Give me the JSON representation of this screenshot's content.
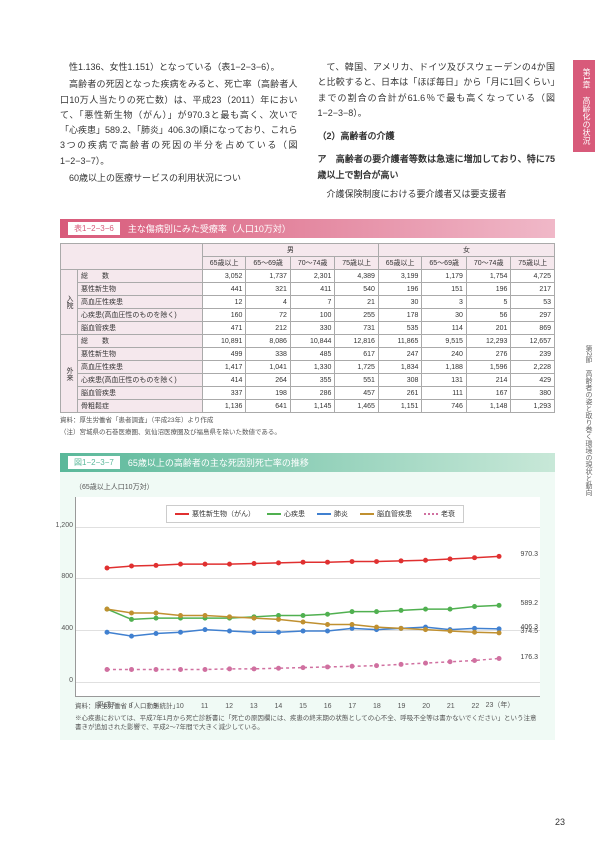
{
  "side_tab": "第1章　高齢化の状況",
  "side_text": "第2節　高齢者の姿と取り巻く環境の現状と動向",
  "left_col": {
    "p1": "性1.136、女性1.151）となっている（表1−2−3−6）。",
    "p2": "高齢者の死因となった疾病をみると、死亡率（高齢者人口10万人当たりの死亡数）は、平成23（2011）年において、「悪性新生物（がん）」が970.3と最も高く、次いで「心疾患」589.2、「肺炎」406.3の順になっており、これら3つの疾病で高齢者の死因の半分を占めている（図1−2−3−7）。",
    "p3": "60歳以上の医療サービスの利用状況につい"
  },
  "right_col": {
    "p1": "て、韓国、アメリカ、ドイツ及びスウェーデンの4か国と比較すると、日本は「ほぼ毎日」から「月に1回くらい」までの割合の合計が61.6％で最も高くなっている（図1−2−3−8）。",
    "h1": "（2）高齢者の介護",
    "h2": "ア　高齢者の要介護者等数は急速に増加しており、特に75歳以上で割合が高い",
    "p2": "介護保険制度における要介護者又は要支援者"
  },
  "table": {
    "label": "表1−2−3−6",
    "title": "主な傷病別にみた受療率（人口10万対）",
    "col_groups": [
      "男",
      "女"
    ],
    "cols": [
      "65歳以上",
      "65〜69歳",
      "70〜74歳",
      "75歳以上",
      "65歳以上",
      "65〜69歳",
      "70〜74歳",
      "75歳以上"
    ],
    "sections": [
      {
        "cat": "入院",
        "rows": [
          {
            "name": "総　　数",
            "vals": [
              "3,052",
              "1,737",
              "2,301",
              "4,389",
              "3,199",
              "1,179",
              "1,754",
              "4,725"
            ]
          },
          {
            "name": "悪性新生物",
            "vals": [
              "441",
              "321",
              "411",
              "540",
              "196",
              "151",
              "196",
              "217"
            ]
          },
          {
            "name": "高血圧性疾患",
            "vals": [
              "12",
              "4",
              "7",
              "21",
              "30",
              "3",
              "5",
              "53"
            ]
          },
          {
            "name": "心疾患(高血圧性のものを除く)",
            "vals": [
              "160",
              "72",
              "100",
              "255",
              "178",
              "30",
              "56",
              "297"
            ]
          },
          {
            "name": "脳血管疾患",
            "vals": [
              "471",
              "212",
              "330",
              "731",
              "535",
              "114",
              "201",
              "869"
            ]
          }
        ]
      },
      {
        "cat": "外来",
        "rows": [
          {
            "name": "総　　数",
            "vals": [
              "10,891",
              "8,086",
              "10,844",
              "12,816",
              "11,865",
              "9,515",
              "12,293",
              "12,657"
            ]
          },
          {
            "name": "悪性新生物",
            "vals": [
              "499",
              "338",
              "485",
              "617",
              "247",
              "240",
              "276",
              "239"
            ]
          },
          {
            "name": "高血圧性疾患",
            "vals": [
              "1,417",
              "1,041",
              "1,330",
              "1,725",
              "1,834",
              "1,188",
              "1,596",
              "2,228"
            ]
          },
          {
            "name": "心疾患(高血圧性のものを除く)",
            "vals": [
              "414",
              "264",
              "355",
              "551",
              "308",
              "131",
              "214",
              "429"
            ]
          },
          {
            "name": "脳血管疾患",
            "vals": [
              "337",
              "198",
              "286",
              "457",
              "261",
              "111",
              "167",
              "380"
            ]
          },
          {
            "name": "骨粗鬆症",
            "vals": [
              "1,136",
              "641",
              "1,145",
              "1,465",
              "1,151",
              "746",
              "1,148",
              "1,293"
            ]
          }
        ]
      }
    ],
    "note1": "資料：厚生労働省「患者調査」（平成23年）より作成",
    "note2": "（注）宮城県の石巻医療圏、気仙沼医療圏及び福島県を除いた数値である。"
  },
  "figure": {
    "label": "図1−2−3−7",
    "title": "65歳以上の高齢者の主な死因別死亡率の推移",
    "ylabel": "（65歳以上人口10万対）",
    "ymax": 1200,
    "yticks": [
      0,
      400,
      800,
      1200
    ],
    "xticks": [
      "平成7",
      "8",
      "9",
      "10",
      "11",
      "12",
      "13",
      "14",
      "15",
      "16",
      "17",
      "18",
      "19",
      "20",
      "21",
      "22",
      "23（年）"
    ],
    "series": [
      {
        "name": "悪性新生物（がん）",
        "color": "#e03030",
        "marker": "diamond",
        "end_val": "970.3",
        "data": [
          880,
          895,
          900,
          910,
          910,
          910,
          915,
          920,
          925,
          925,
          930,
          930,
          935,
          940,
          950,
          960,
          970
        ]
      },
      {
        "name": "心疾患",
        "color": "#50b050",
        "marker": "triangle",
        "end_val": "589.2",
        "data": [
          560,
          480,
          490,
          490,
          490,
          490,
          500,
          510,
          510,
          520,
          540,
          540,
          550,
          560,
          560,
          580,
          589
        ]
      },
      {
        "name": "肺炎",
        "color": "#4080d0",
        "marker": "diamond",
        "end_val": "406.3",
        "data": [
          380,
          350,
          370,
          380,
          400,
          390,
          380,
          380,
          390,
          390,
          410,
          400,
          410,
          420,
          400,
          410,
          406
        ]
      },
      {
        "name": "脳血管疾患",
        "color": "#c09030",
        "marker": "circle",
        "end_val": "374.5",
        "data": [
          560,
          530,
          530,
          510,
          510,
          500,
          490,
          480,
          460,
          440,
          440,
          420,
          410,
          400,
          390,
          380,
          375
        ]
      },
      {
        "name": "老衰",
        "color": "#d070a0",
        "marker": "circle",
        "end_val": "176.3",
        "dash": true,
        "data": [
          90,
          90,
          90,
          90,
          90,
          95,
          95,
          100,
          105,
          110,
          115,
          120,
          130,
          140,
          150,
          160,
          176
        ]
      }
    ],
    "note1": "資料：厚生労働省「人口動態統計」",
    "note2": "※心疾患においては、平成7年1月から死亡診断書に「死亡の原因欄には、疾患の終末期の状態としての心不全、呼吸不全等は書かないでください」という注意書きが追加された影響で、平成2〜7年間で大きく減少している。"
  },
  "page_num": "23"
}
